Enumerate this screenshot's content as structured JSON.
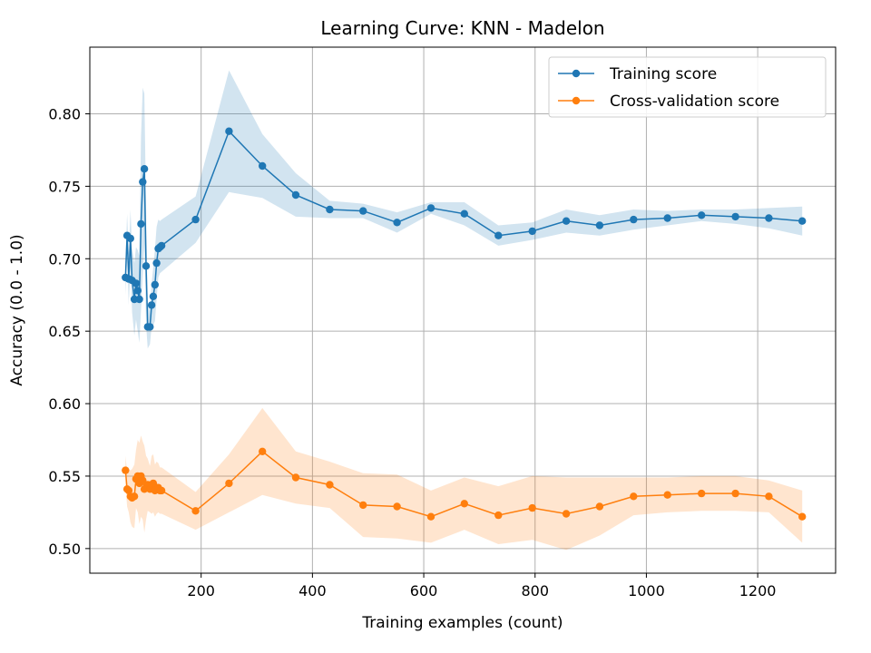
{
  "chart_data": {
    "type": "line",
    "title": "Learning Curve: KNN - Madelon",
    "xlabel": "Training examples (count)",
    "ylabel": "Accuracy (0.0 - 1.0)",
    "xlim": [
      0,
      1340
    ],
    "ylim": [
      0.483,
      0.846
    ],
    "xticks": [
      200,
      400,
      600,
      800,
      1000,
      1200
    ],
    "yticks": [
      0.5,
      0.55,
      0.6,
      0.65,
      0.7,
      0.75,
      0.8
    ],
    "ytick_labels": [
      "0.50",
      "0.55",
      "0.60",
      "0.65",
      "0.70",
      "0.75",
      "0.80"
    ],
    "grid": true,
    "legend_position": "top-right",
    "series": [
      {
        "name": "Training score",
        "color": "#1f77b4",
        "x": [
          64,
          67,
          70,
          73,
          76,
          80,
          83,
          86,
          89,
          92,
          95,
          98,
          101,
          104,
          108,
          111,
          114,
          117,
          120,
          123,
          126,
          129,
          190,
          250,
          310,
          370,
          431,
          491,
          552,
          613,
          673,
          734,
          795,
          856,
          916,
          977,
          1038,
          1099,
          1160,
          1220,
          1280
        ],
        "y": [
          0.687,
          0.716,
          0.686,
          0.714,
          0.685,
          0.672,
          0.683,
          0.678,
          0.672,
          0.724,
          0.753,
          0.762,
          0.695,
          0.653,
          0.653,
          0.668,
          0.674,
          0.682,
          0.697,
          0.707,
          0.708,
          0.709,
          0.727,
          0.788,
          0.764,
          0.744,
          0.734,
          0.733,
          0.725,
          0.735,
          0.731,
          0.716,
          0.719,
          0.726,
          0.723,
          0.727,
          0.728,
          0.73,
          0.729,
          0.728,
          0.726
        ],
        "std": [
          0.012,
          0.015,
          0.018,
          0.02,
          0.022,
          0.025,
          0.025,
          0.028,
          0.03,
          0.06,
          0.065,
          0.052,
          0.04,
          0.015,
          0.012,
          0.015,
          0.02,
          0.025,
          0.025,
          0.02,
          0.018,
          0.018,
          0.016,
          0.042,
          0.022,
          0.015,
          0.006,
          0.005,
          0.007,
          0.004,
          0.008,
          0.007,
          0.006,
          0.008,
          0.007,
          0.007,
          0.005,
          0.004,
          0.005,
          0.007,
          0.01
        ]
      },
      {
        "name": "Cross-validation score",
        "color": "#ff7f0e",
        "x": [
          64,
          67,
          70,
          73,
          76,
          80,
          83,
          86,
          89,
          92,
          95,
          98,
          101,
          104,
          108,
          111,
          114,
          117,
          120,
          123,
          126,
          129,
          190,
          250,
          310,
          370,
          431,
          491,
          552,
          613,
          673,
          734,
          795,
          856,
          916,
          977,
          1038,
          1099,
          1160,
          1220,
          1280
        ],
        "y": [
          0.554,
          0.541,
          0.54,
          0.536,
          0.535,
          0.536,
          0.548,
          0.55,
          0.545,
          0.55,
          0.547,
          0.541,
          0.542,
          0.544,
          0.541,
          0.544,
          0.545,
          0.54,
          0.542,
          0.542,
          0.54,
          0.54,
          0.526,
          0.545,
          0.567,
          0.549,
          0.544,
          0.53,
          0.529,
          0.522,
          0.531,
          0.523,
          0.528,
          0.524,
          0.529,
          0.536,
          0.537,
          0.538,
          0.538,
          0.536,
          0.522
        ],
        "std": [
          0.01,
          0.012,
          0.015,
          0.018,
          0.02,
          0.022,
          0.02,
          0.025,
          0.028,
          0.028,
          0.027,
          0.03,
          0.022,
          0.018,
          0.016,
          0.02,
          0.02,
          0.018,
          0.018,
          0.017,
          0.016,
          0.016,
          0.013,
          0.02,
          0.03,
          0.018,
          0.016,
          0.022,
          0.022,
          0.018,
          0.018,
          0.02,
          0.022,
          0.025,
          0.02,
          0.013,
          0.012,
          0.012,
          0.012,
          0.011,
          0.018
        ]
      }
    ]
  }
}
